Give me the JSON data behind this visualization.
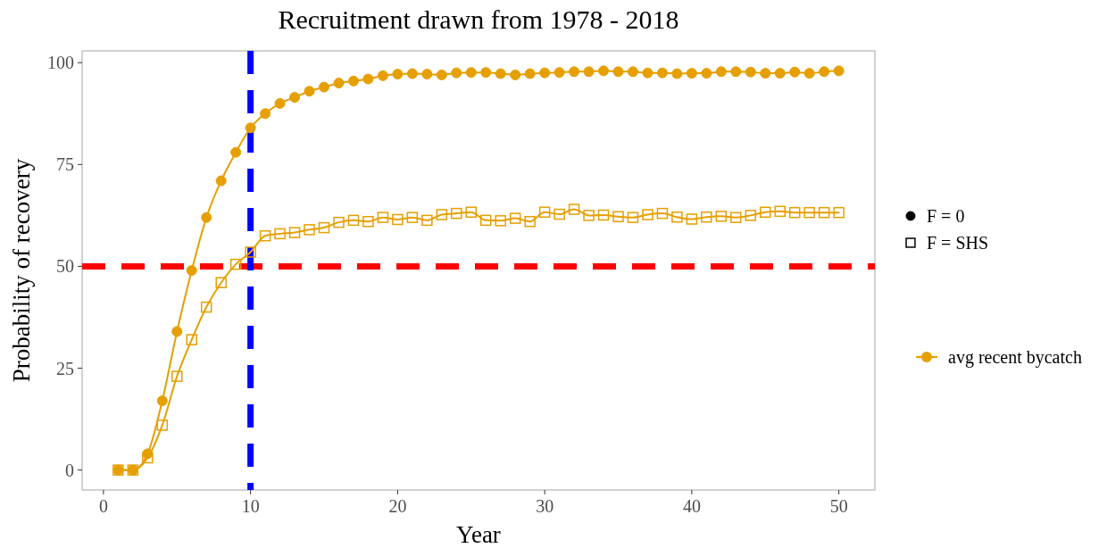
{
  "chart_data": {
    "type": "line",
    "title": "Recruitment drawn from 1978 - 2018",
    "xlabel": "Year",
    "ylabel": "Probability of recovery",
    "x": [
      1,
      2,
      3,
      4,
      5,
      6,
      7,
      8,
      9,
      10,
      11,
      12,
      13,
      14,
      15,
      16,
      17,
      18,
      19,
      20,
      21,
      22,
      23,
      24,
      25,
      26,
      27,
      28,
      29,
      30,
      31,
      32,
      33,
      34,
      35,
      36,
      37,
      38,
      39,
      40,
      41,
      42,
      43,
      44,
      45,
      46,
      47,
      48,
      49,
      50
    ],
    "series": [
      {
        "name": "F = 0",
        "color": "#e69f00",
        "marker": "circle",
        "values": [
          0,
          0,
          4,
          17,
          34,
          49,
          62,
          71,
          78,
          84,
          87.5,
          90,
          91.5,
          93,
          94,
          95,
          95.5,
          96,
          96.8,
          97.2,
          97.3,
          97.2,
          97,
          97.5,
          97.6,
          97.6,
          97.3,
          97,
          97.3,
          97.5,
          97.6,
          97.8,
          97.8,
          98,
          97.8,
          97.8,
          97.5,
          97.5,
          97.3,
          97.4,
          97.4,
          97.8,
          97.8,
          97.7,
          97.4,
          97.4,
          97.7,
          97.4,
          97.8,
          98
        ]
      },
      {
        "name": "F = SHS",
        "color": "#e69f00",
        "marker": "square",
        "values": [
          0,
          0,
          3,
          11,
          23,
          32,
          40,
          46,
          50.5,
          53.5,
          57.5,
          58,
          58.3,
          59,
          59.5,
          60.8,
          61.3,
          61,
          62,
          61.5,
          62,
          61.3,
          62.7,
          63,
          63.3,
          61.3,
          61.2,
          61.8,
          61,
          63.3,
          62.8,
          64,
          62.5,
          62.6,
          62.2,
          62,
          62.7,
          63,
          62.1,
          61.6,
          62.1,
          62.3,
          62,
          62.5,
          63.3,
          63.5,
          63.2,
          63.2,
          63.2,
          63.2
        ]
      }
    ],
    "annotations": [
      "avg recent bycatch"
    ],
    "xlim": [
      -1.45,
      52.45
    ],
    "ylim": [
      -4.9,
      102.9
    ],
    "xticks": [
      0,
      10,
      20,
      30,
      40,
      50
    ],
    "yticks": [
      0,
      25,
      50,
      75,
      100
    ],
    "ref_lines": [
      {
        "axis": "y",
        "value": 50,
        "color": "#ff0000",
        "line_style": "dashed"
      },
      {
        "axis": "x",
        "value": 10,
        "color": "#0000ff",
        "line_style": "dashed"
      }
    ],
    "grid": false,
    "legend": "right"
  }
}
